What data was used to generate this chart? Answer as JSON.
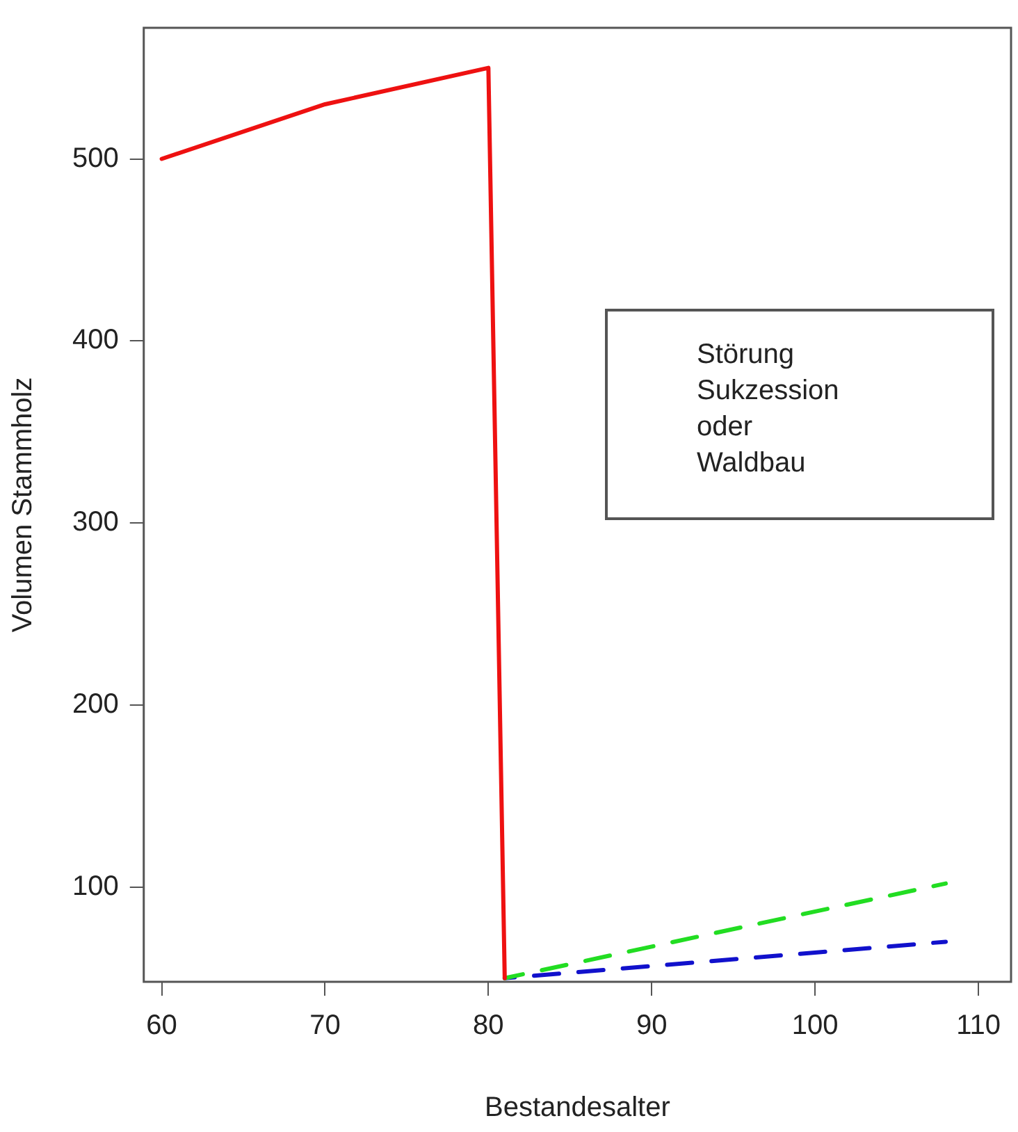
{
  "chart_data": {
    "type": "line",
    "xlabel": "Bestandesalter",
    "ylabel": "Volumen Stammholz",
    "annotations": [
      "Störung\nSukzession\noder\nWaldbau"
    ],
    "series": [
      {
        "color": "#ee1111",
        "x": [
          60,
          70,
          80,
          81
        ],
        "values": [
          500,
          530,
          550,
          50
        ],
        "line_style": "solid"
      },
      {
        "color": "#22dd22",
        "x": [
          81,
          108
        ],
        "values": [
          50,
          102
        ],
        "line_style": "dashed"
      },
      {
        "color": "#1111cc",
        "x": [
          81,
          108
        ],
        "values": [
          50,
          70
        ],
        "line_style": "dashed"
      }
    ],
    "xlim": [
      58.9,
      112
    ],
    "xticks": [
      60,
      70,
      80,
      90,
      100,
      110
    ],
    "ylim": [
      48,
      572
    ],
    "yticks": [
      100,
      200,
      300,
      400,
      500
    ],
    "grid": false,
    "legend": false,
    "marker": "none"
  }
}
